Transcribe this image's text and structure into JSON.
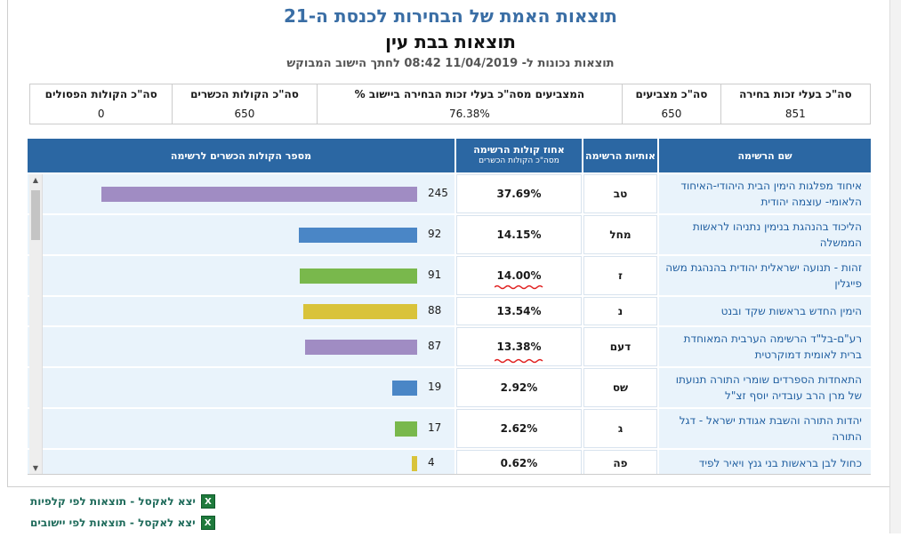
{
  "header": {
    "title": "תוצאות האמת של הבחירות לכנסת ה-21",
    "subtitle": "תוצאות בבת עין",
    "updated": "תוצאות נכונות ל- 11/04/2019 08:42 לחתך הישוב המבוקש"
  },
  "stats": [
    {
      "label": "סה\"כ בעלי זכות בחירה",
      "value": "851"
    },
    {
      "label": "סה\"כ מצביעים",
      "value": "650"
    },
    {
      "label": "% המצביעים מסה\"כ בעלי זכות הבחירה ביישוב",
      "value": "76.38%"
    },
    {
      "label": "סה\"כ הקולות הכשרים",
      "value": "650"
    },
    {
      "label": "סה\"כ הקולות הפסולים",
      "value": "0"
    }
  ],
  "table": {
    "headers": {
      "name": "שם הרשימה",
      "letters": "אותיות הרשימה",
      "pct": "אחוז קולות הרשימה",
      "pct_sub": "מסה\"כ הקולות הכשרים",
      "votes": "מספר הקולות הכשרים לרשימה"
    },
    "rows": [
      {
        "name": "איחוד מפלגות הימין הבית היהודי-האיחוד הלאומי- עוצמה יהודית",
        "letters": "טב",
        "pct": "37.69%",
        "votes": "245",
        "color": "#a08cc3"
      },
      {
        "name": "הליכוד בהנהגת בנימין נתניהו לראשות הממשלה",
        "letters": "מחל",
        "pct": "14.15%",
        "votes": "92",
        "color": "#4a86c6"
      },
      {
        "name": "זהות - תנועה ישראלית יהודית בהנהגת משה פייגלין",
        "letters": "ז",
        "pct": "14.00%",
        "votes": "91",
        "color": "#79b84c"
      },
      {
        "name": "הימין החדש בראשות שקד ובנט",
        "letters": "נ",
        "pct": "13.54%",
        "votes": "88",
        "color": "#d9c33a"
      },
      {
        "name": "רע\"ם-בל\"ד הרשימה הערבית המאוחדת ברית לאומית דמוקרטית",
        "letters": "דעם",
        "pct": "13.38%",
        "votes": "87",
        "color": "#a08cc3"
      },
      {
        "name": "התאחדות הספרדים שומרי התורה תנועתו של מרן הרב עובדיה יוסף זצ\"ל",
        "letters": "שס",
        "pct": "2.92%",
        "votes": "19",
        "color": "#4a86c6"
      },
      {
        "name": "יהדות התורה והשבת אגודת ישראל - דגל התורה",
        "letters": "ג",
        "pct": "2.62%",
        "votes": "17",
        "color": "#79b84c"
      },
      {
        "name": "כחול לבן בראשות בני גנץ ויאיר לפיד",
        "letters": "פה",
        "pct": "0.62%",
        "votes": "4",
        "color": "#d9c33a"
      }
    ]
  },
  "links": [
    {
      "label": "יצא לאקסל - תוצאות לפי קלפיות"
    },
    {
      "label": "יצא לאקסל - תוצאות לפי יישובים"
    }
  ]
}
